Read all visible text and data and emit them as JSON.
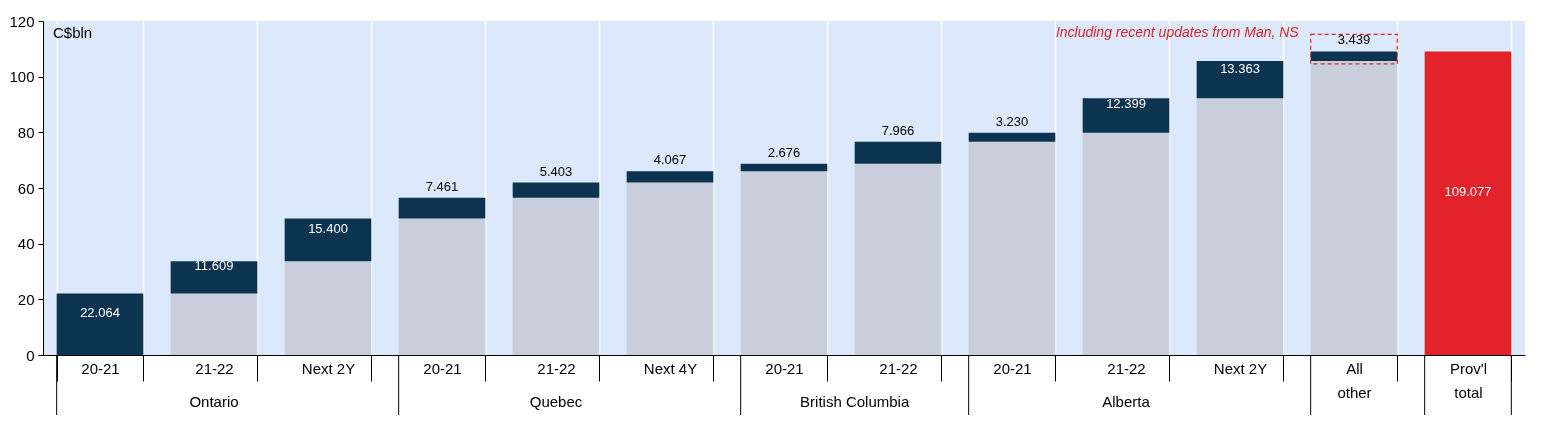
{
  "chart_data": {
    "type": "bar",
    "stacked": true,
    "ylabel": "C$bln",
    "categories": [
      "20-21",
      "21-22",
      "Next 2Y",
      "20-21",
      "21-22",
      "Next 4Y",
      "20-21",
      "21-22",
      "20-21",
      "21-22",
      "Next 2Y",
      "All other",
      "Prov'l total"
    ],
    "series": [
      {
        "color": "#c8cedb",
        "values": [
          null,
          22.064,
          33.673,
          49.073,
          56.534,
          61.937,
          66.004,
          68.68,
          76.646,
          79.876,
          92.275,
          105.638,
          null
        ]
      },
      {
        "colors": [
          "#0c3450",
          "#0c3450",
          "#0c3450",
          "#0c3450",
          "#0c3450",
          "#0c3450",
          "#0c3450",
          "#0c3450",
          "#0c3450",
          "#0c3450",
          "#0c3450",
          "#0c3450",
          "#e32229"
        ],
        "values": [
          22.064,
          11.609,
          15.4,
          7.461,
          5.403,
          4.067,
          2.676,
          7.966,
          3.23,
          12.399,
          13.363,
          3.439,
          109.077
        ],
        "value_labels": [
          "22.064",
          "11.609",
          "15.400",
          "7.461",
          "5.403",
          "4.067",
          "2.676",
          "7.966",
          "3.230",
          "12.399",
          "13.363",
          "3.439",
          "109.077"
        ]
      }
    ],
    "ylim": [
      0,
      120
    ],
    "yticks": [
      0,
      20,
      40,
      60,
      80,
      100,
      120
    ],
    "grid": "x",
    "annotations": [
      "Ontario",
      "Quebec",
      "British Columbia",
      "Alberta",
      "Including recent updates from Man, NS"
    ]
  }
}
